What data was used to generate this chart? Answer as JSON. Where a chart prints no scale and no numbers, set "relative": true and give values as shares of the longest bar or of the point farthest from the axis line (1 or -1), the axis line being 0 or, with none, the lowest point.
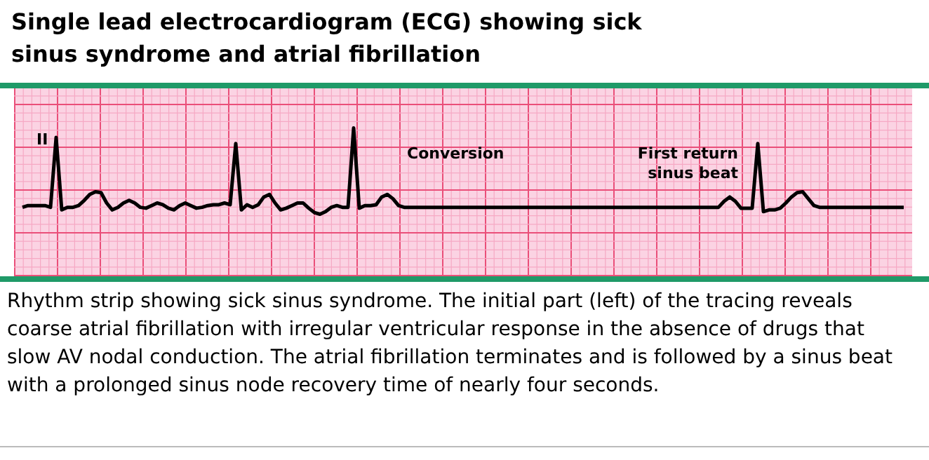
{
  "chart_data": {
    "type": "line",
    "title": "Single lead electrocardiogram (ECG) showing sick sinus syndrome and atrial fibrillation",
    "relative": true,
    "grid": true,
    "legend": false,
    "marker": "none",
    "line_style": "solid",
    "categories": [
      null,
      null,
      null,
      null,
      null,
      null,
      null,
      null,
      null,
      null,
      null,
      null,
      null,
      null,
      null,
      null,
      null,
      null,
      null,
      null,
      null,
      null,
      null,
      null,
      null,
      null,
      null,
      null,
      null,
      null,
      null,
      null,
      null,
      null,
      null,
      null,
      null,
      null,
      null,
      null,
      null,
      null,
      null,
      null,
      null,
      null,
      null,
      null,
      null,
      null,
      null,
      null,
      null,
      null,
      null,
      null,
      null,
      null,
      null,
      null,
      null,
      null,
      null,
      null,
      null,
      null,
      null,
      null,
      null,
      null,
      null,
      null,
      null,
      null,
      null,
      null,
      null,
      null,
      null,
      null,
      null,
      null,
      null,
      null,
      null,
      null,
      null,
      null,
      null,
      null,
      null,
      null,
      null,
      null,
      null,
      null,
      null,
      null,
      null,
      null,
      null,
      null,
      null,
      null,
      null,
      null,
      null,
      null,
      null,
      null,
      null,
      null,
      null,
      null,
      null,
      null,
      null,
      null,
      null,
      null,
      null,
      null,
      null,
      null,
      null,
      null,
      null,
      null,
      null,
      null,
      null,
      null,
      null,
      null,
      null,
      null,
      null,
      null,
      null,
      null,
      null,
      null,
      null,
      null,
      null,
      null,
      null,
      null,
      null,
      null,
      null,
      null,
      null,
      null,
      null,
      null,
      null,
      null
    ],
    "series": [
      {
        "color": "#000000",
        "values": [
          0.08,
          0.1,
          0.1,
          0.1,
          0.1,
          0.08,
          0.89,
          0.05,
          0.08,
          0.08,
          0.1,
          0.16,
          0.23,
          0.26,
          0.25,
          0.13,
          0.05,
          0.08,
          0.13,
          0.16,
          0.13,
          0.08,
          0.07,
          0.1,
          0.13,
          0.11,
          0.07,
          0.05,
          0.1,
          0.13,
          0.1,
          0.07,
          0.08,
          0.1,
          0.11,
          0.11,
          0.13,
          0.11,
          0.82,
          0.05,
          0.11,
          0.08,
          0.11,
          0.2,
          0.23,
          0.13,
          0.05,
          0.07,
          0.1,
          0.13,
          0.13,
          0.07,
          0.02,
          0,
          0.03,
          0.08,
          0.1,
          0.08,
          0.08,
          1,
          0.07,
          0.1,
          0.1,
          0.11,
          0.2,
          0.23,
          0.18,
          0.1,
          0.08,
          0.08,
          0.08,
          0.08,
          0.08,
          0.08,
          0.08,
          0.08,
          0.08,
          0.08,
          0.08,
          0.08,
          0.08,
          0.08,
          0.08,
          0.08,
          0.08,
          0.08,
          0.08,
          0.08,
          0.08,
          0.08,
          0.08,
          0.08,
          0.08,
          0.08,
          0.08,
          0.08,
          0.08,
          0.08,
          0.08,
          0.08,
          0.08,
          0.08,
          0.08,
          0.08,
          0.08,
          0.08,
          0.08,
          0.08,
          0.08,
          0.08,
          0.08,
          0.08,
          0.08,
          0.08,
          0.08,
          0.08,
          0.08,
          0.08,
          0.08,
          0.08,
          0.08,
          0.08,
          0.08,
          0.08,
          0.08,
          0.15,
          0.2,
          0.15,
          0.07,
          0.07,
          0.07,
          0.82,
          0.03,
          0.05,
          0.05,
          0.07,
          0.13,
          0.2,
          0.25,
          0.26,
          0.18,
          0.1,
          0.08,
          0.08,
          0.08,
          0.08,
          0.08,
          0.08,
          0.08,
          0.08,
          0.08,
          0.08,
          0.08,
          0.08,
          0.08,
          0.08,
          0.08,
          0.08
        ]
      }
    ],
    "annotations": [
      "II",
      "Conversion",
      "First return sinus beat",
      "Rhythm strip showing sick sinus syndrome. The initial part (left) of the tracing reveals coarse atrial fibrillation with irregular ventricular response in the absence of drugs that slow AV nodal conduction. The atrial fibrillation terminates and is followed by a sinus beat with a prolonged sinus node recovery time of nearly four seconds."
    ]
  }
}
